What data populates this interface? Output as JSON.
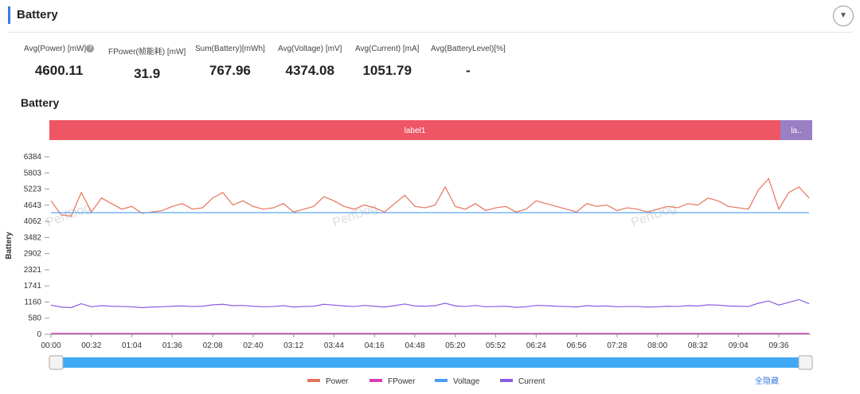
{
  "header": {
    "title": "Battery"
  },
  "stats": [
    {
      "label": "Avg(Power) [mW]",
      "value": "4600.11"
    },
    {
      "label": "FPower(帧能耗) [mW]",
      "value": "31.9"
    },
    {
      "label": "Sum(Battery)[mWh]",
      "value": "767.96"
    },
    {
      "label": "Avg(Voltage) [mV]",
      "value": "4374.08"
    },
    {
      "label": "Avg(Current) [mA]",
      "value": "1051.79"
    },
    {
      "label": "Avg(BatteryLevel)[%]",
      "value": "-"
    }
  ],
  "section_title": "Battery",
  "bands": [
    "label1",
    "la.."
  ],
  "watermark": "PerfDog",
  "hide_all": "全隐藏",
  "chart_data": {
    "type": "line",
    "ylabel": "Battery",
    "grid": false,
    "categories": [
      "00:00",
      null,
      null,
      null,
      "00:32",
      null,
      null,
      null,
      "01:04",
      null,
      null,
      null,
      "01:36",
      null,
      null,
      null,
      "02:08",
      null,
      null,
      null,
      "02:40",
      null,
      null,
      null,
      "03:12",
      null,
      null,
      null,
      "03:44",
      null,
      null,
      null,
      "04:16",
      null,
      null,
      null,
      "04:48",
      null,
      null,
      null,
      "05:20",
      null,
      null,
      null,
      "05:52",
      null,
      null,
      null,
      "06:24",
      null,
      null,
      null,
      "06:56",
      null,
      null,
      null,
      "07:28",
      null,
      null,
      null,
      "08:00",
      null,
      null,
      null,
      "08:32",
      null,
      null,
      null,
      "09:04",
      null,
      null,
      null,
      "09:36",
      null,
      null,
      null
    ],
    "ylim": [
      0,
      6384
    ],
    "yticks": [
      0,
      580,
      1160,
      1741,
      2321,
      2902,
      3482,
      4062,
      4643,
      5223,
      5803,
      6384
    ],
    "series": [
      {
        "name": "Power",
        "color": "#e8735a",
        "values": [
          4800,
          4300,
          4250,
          5100,
          4400,
          4900,
          4700,
          4500,
          4600,
          4350,
          4400,
          4450,
          4600,
          4700,
          4500,
          4550,
          4900,
          5100,
          4650,
          4800,
          4600,
          4500,
          4550,
          4700,
          4400,
          4500,
          4600,
          4950,
          4800,
          4600,
          4500,
          4650,
          4550,
          4400,
          4700,
          5000,
          4600,
          4550,
          4650,
          5300,
          4600,
          4500,
          4700,
          4450,
          4550,
          4600,
          4400,
          4500,
          4800,
          4700,
          4600,
          4500,
          4400,
          4700,
          4600,
          4650,
          4450,
          4550,
          4500,
          4400,
          4500,
          4600,
          4550,
          4700,
          4650,
          4900,
          4800,
          4600,
          4550,
          4500,
          5200,
          5600,
          4500,
          5100,
          5300,
          4900
        ]
      },
      {
        "name": "FPower",
        "color": "#d63eb5",
        "values": [
          32,
          32,
          32,
          32,
          32,
          32,
          32,
          32,
          32,
          32,
          32,
          32,
          32,
          32,
          32,
          32,
          32,
          32,
          32,
          32,
          32,
          32,
          32,
          32,
          32,
          32,
          32,
          32,
          32,
          32,
          32,
          32,
          32,
          32,
          32,
          32,
          32,
          32,
          32,
          32,
          32,
          32,
          32,
          32,
          32,
          32,
          32,
          32,
          32,
          32,
          32,
          32,
          32,
          32,
          32,
          32,
          32,
          32,
          32,
          32,
          32,
          32,
          32,
          32,
          32,
          32,
          32,
          32,
          32,
          32,
          32,
          32,
          32,
          32,
          32,
          32
        ]
      },
      {
        "name": "Voltage",
        "color": "#4a9ff5",
        "values": [
          4374,
          4374,
          4374,
          4374,
          4374,
          4374,
          4374,
          4374,
          4374,
          4374,
          4374,
          4374,
          4374,
          4374,
          4374,
          4374,
          4374,
          4374,
          4374,
          4374,
          4374,
          4374,
          4374,
          4374,
          4374,
          4374,
          4374,
          4374,
          4374,
          4374,
          4374,
          4374,
          4374,
          4374,
          4374,
          4374,
          4374,
          4374,
          4374,
          4374,
          4374,
          4374,
          4374,
          4374,
          4374,
          4374,
          4374,
          4374,
          4374,
          4374,
          4374,
          4374,
          4374,
          4374,
          4374,
          4374,
          4374,
          4374,
          4374,
          4374,
          4374,
          4374,
          4374,
          4374,
          4374,
          4374,
          4374,
          4374,
          4374,
          4374,
          4374,
          4374,
          4374,
          4374,
          4374,
          4374
        ]
      },
      {
        "name": "Current",
        "color": "#8a5ce0",
        "values": [
          1050,
          980,
          960,
          1100,
          990,
          1030,
          1010,
          1000,
          990,
          960,
          980,
          990,
          1010,
          1020,
          1000,
          1010,
          1060,
          1080,
          1030,
          1040,
          1010,
          990,
          1000,
          1030,
          980,
          1000,
          1010,
          1080,
          1050,
          1020,
          1000,
          1040,
          1010,
          980,
          1030,
          1090,
          1020,
          1010,
          1030,
          1120,
          1020,
          1000,
          1040,
          990,
          1000,
          1010,
          970,
          990,
          1040,
          1030,
          1010,
          1000,
          980,
          1030,
          1010,
          1020,
          990,
          1000,
          1000,
          980,
          990,
          1010,
          1000,
          1030,
          1020,
          1060,
          1050,
          1020,
          1010,
          1000,
          1120,
          1200,
          1050,
          1150,
          1250,
          1100
        ]
      }
    ]
  }
}
